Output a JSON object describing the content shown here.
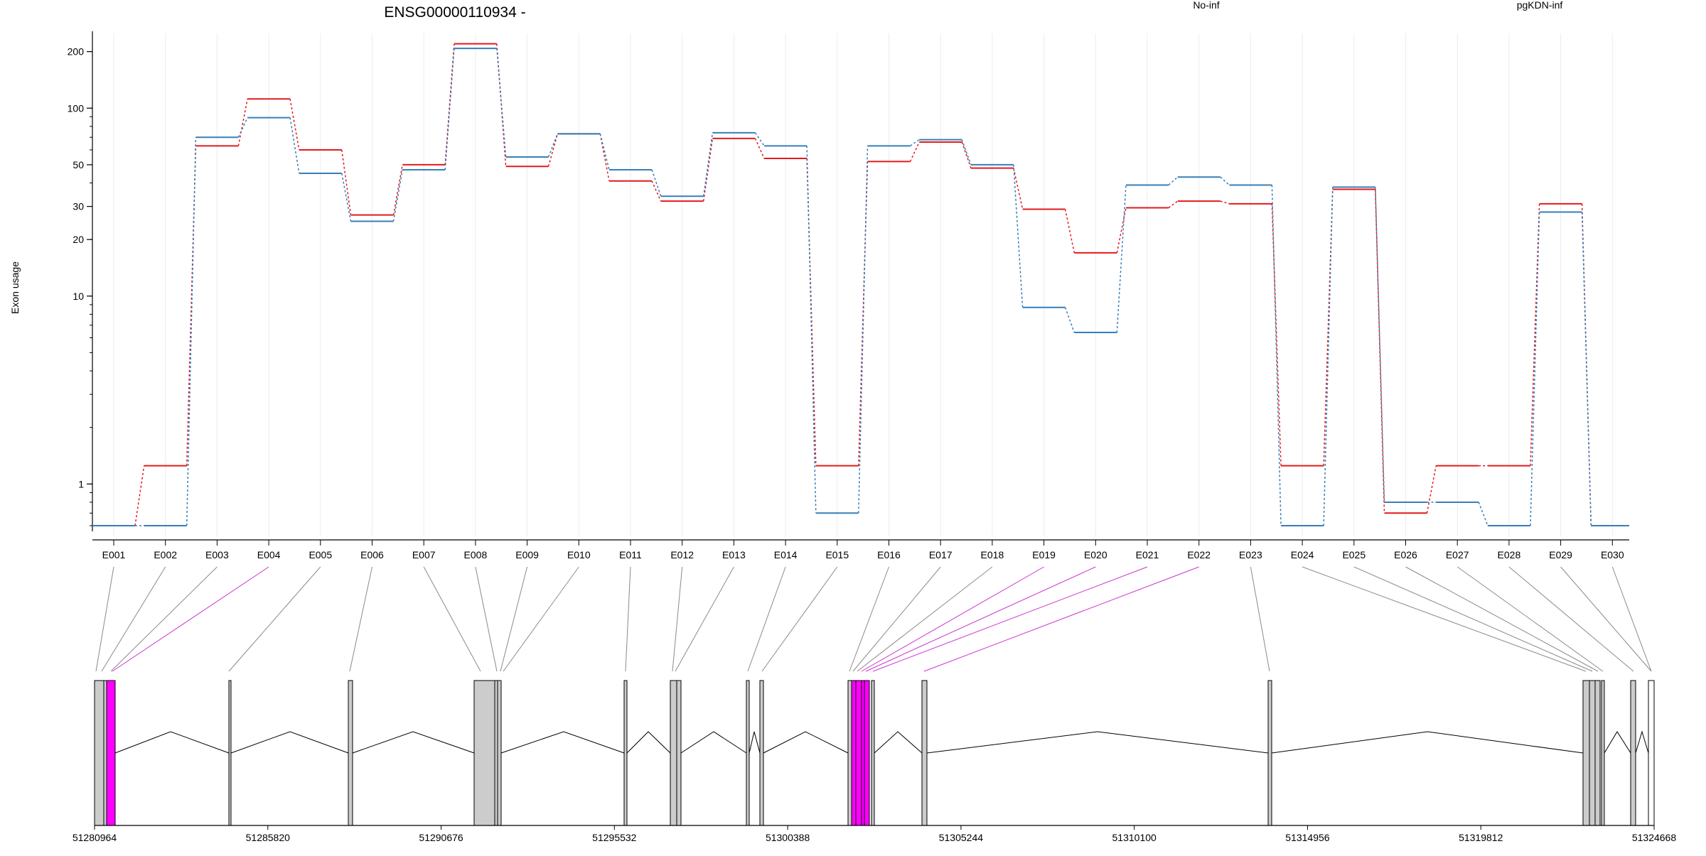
{
  "chart_data": {
    "type": "line",
    "title": "ENSG00000110934 -",
    "ylabel": "Exon usage",
    "yscale": "log",
    "ylim": [
      0.6,
      250
    ],
    "yticks": [
      1,
      10,
      20,
      30,
      50,
      100,
      200
    ],
    "grid": "vertical",
    "legend_position": "top-right",
    "categories": [
      "E001",
      "E002",
      "E003",
      "E004",
      "E005",
      "E006",
      "E007",
      "E008",
      "E009",
      "E010",
      "E011",
      "E012",
      "E013",
      "E014",
      "E015",
      "E016",
      "E017",
      "E018",
      "E019",
      "E020",
      "E021",
      "E022",
      "E023",
      "E024",
      "E025",
      "E026",
      "E027",
      "E028",
      "E029",
      "E030"
    ],
    "series": [
      {
        "name": "No-inf",
        "color": "#e41a1c",
        "values": [
          0.6,
          1.25,
          63,
          112,
          60,
          27,
          50,
          220,
          49,
          73,
          41,
          32,
          69,
          54,
          1.25,
          52,
          66,
          48,
          29,
          17,
          29.5,
          32,
          31,
          1.25,
          37,
          0.7,
          1.25,
          1.25,
          31,
          0.6
        ]
      },
      {
        "name": "pgKDN-inf",
        "color": "#377eb8",
        "values": [
          0.6,
          0.6,
          70,
          89,
          45,
          25,
          47,
          208,
          55,
          73,
          47,
          34,
          74,
          63,
          0.7,
          63,
          68,
          50,
          8.7,
          6.4,
          39,
          43,
          39,
          0.6,
          38,
          0.8,
          0.8,
          0.6,
          28,
          0.6
        ]
      }
    ],
    "gene_model": {
      "coordinate_ticks": [
        "51280964",
        "51285820",
        "51290676",
        "51295532",
        "51300388",
        "51305244",
        "51310100",
        "51314956",
        "51319812",
        "51324668"
      ],
      "highlight_color": "#ff00ff",
      "highlighted_exons": [
        "E004",
        "E019",
        "E020",
        "E021",
        "E022"
      ]
    }
  }
}
